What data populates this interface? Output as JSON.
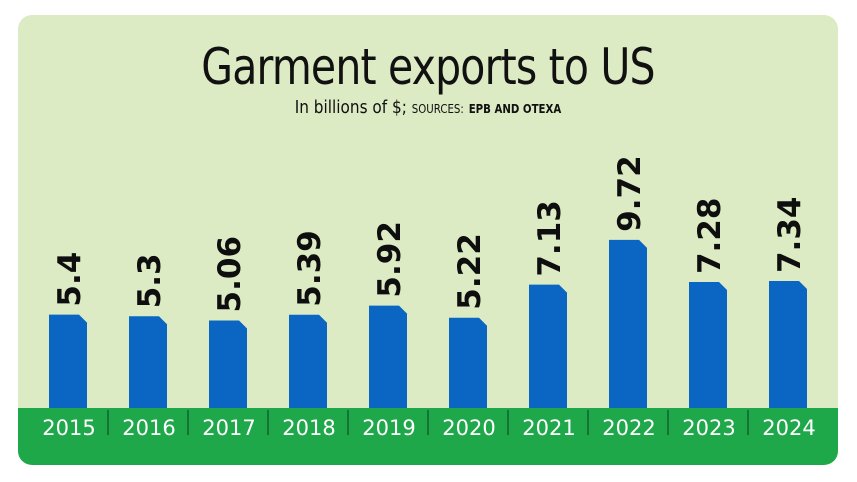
{
  "chart_data": {
    "type": "bar",
    "title": "Garment exports to US",
    "subtitle_main": "In billions of $;",
    "subtitle_sources_label": "SOURCES:",
    "subtitle_sources": "EPB AND OTEXA",
    "categories": [
      "2015",
      "2016",
      "2017",
      "2018",
      "2019",
      "2020",
      "2021",
      "2022",
      "2023",
      "2024"
    ],
    "values": [
      5.4,
      5.3,
      5.06,
      5.39,
      5.92,
      5.22,
      7.13,
      9.72,
      7.28,
      7.34
    ],
    "value_labels": [
      "5.4",
      "5.3",
      "5.06",
      "5.39",
      "5.92",
      "5.22",
      "7.13",
      "9.72",
      "7.28",
      "7.34"
    ],
    "ylim": [
      0,
      10
    ],
    "grid": false,
    "colors": {
      "bar": "#0a66c2",
      "background": "#dcebc4",
      "footer": "#1fa84a"
    }
  }
}
